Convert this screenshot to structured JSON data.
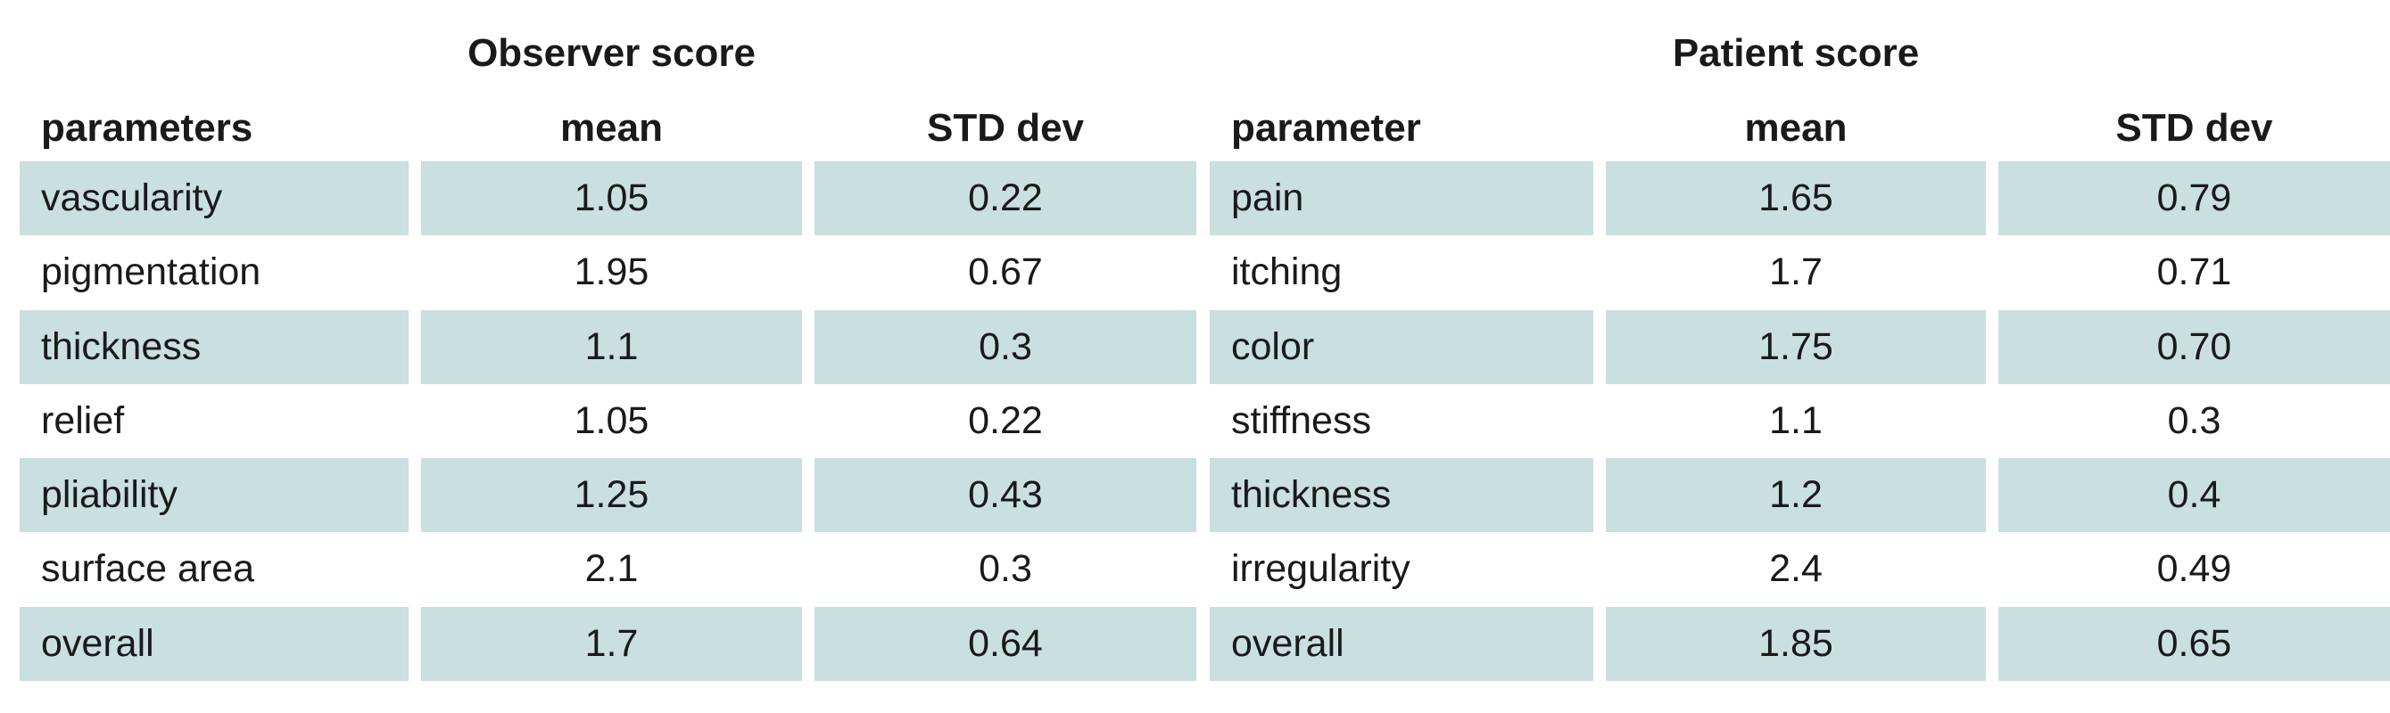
{
  "groups": {
    "observer": "Observer score",
    "patient": "Patient score"
  },
  "headers": {
    "observer_param": "parameters",
    "observer_mean": "mean",
    "observer_std": "STD dev",
    "patient_param": "parameter",
    "patient_mean": "mean",
    "patient_std": "STD dev"
  },
  "rows": [
    {
      "obs_param": "vascularity",
      "obs_mean": "1.05",
      "obs_std": "0.22",
      "pat_param": "pain",
      "pat_mean": "1.65",
      "pat_std": "0.79"
    },
    {
      "obs_param": "pigmentation",
      "obs_mean": "1.95",
      "obs_std": "0.67",
      "pat_param": "itching",
      "pat_mean": "1.7",
      "pat_std": "0.71"
    },
    {
      "obs_param": "thickness",
      "obs_mean": "1.1",
      "obs_std": "0.3",
      "pat_param": "color",
      "pat_mean": "1.75",
      "pat_std": "0.70"
    },
    {
      "obs_param": "relief",
      "obs_mean": "1.05",
      "obs_std": "0.22",
      "pat_param": "stiffness",
      "pat_mean": "1.1",
      "pat_std": "0.3"
    },
    {
      "obs_param": "pliability",
      "obs_mean": "1.25",
      "obs_std": "0.43",
      "pat_param": "thickness",
      "pat_mean": "1.2",
      "pat_std": "0.4"
    },
    {
      "obs_param": "surface area",
      "obs_mean": "2.1",
      "obs_std": "0.3",
      "pat_param": "irregularity",
      "pat_mean": "2.4",
      "pat_std": "0.49"
    },
    {
      "obs_param": "overall",
      "obs_mean": "1.7",
      "obs_std": "0.64",
      "pat_param": "overall",
      "pat_mean": "1.85",
      "pat_std": "0.65"
    }
  ],
  "colors": {
    "row_shade": "#c9dfe0",
    "text": "#1a1a1a"
  }
}
